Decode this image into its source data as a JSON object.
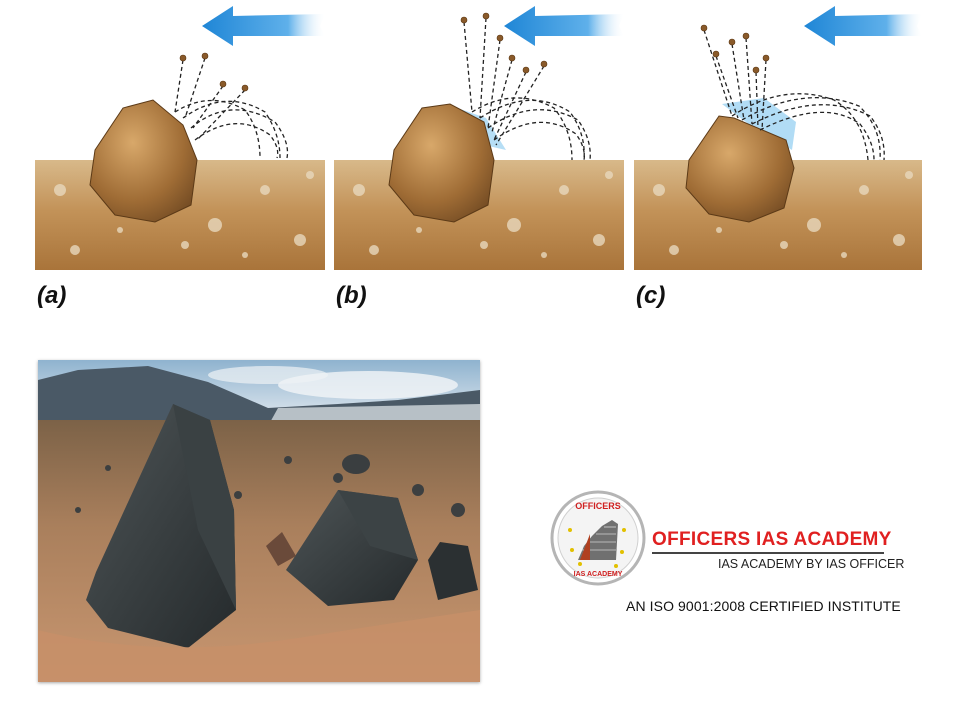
{
  "panels": [
    {
      "label": "(a)"
    },
    {
      "label": "(b)"
    },
    {
      "label": "(c)"
    }
  ],
  "colors": {
    "wind_arrow": "#2f93dc",
    "soil": "#b98a4e",
    "rock": "#9a6a35",
    "abrasion_zone": "#9dd3f2",
    "brand_red": "#e02020"
  },
  "photo": {
    "icon": "ventifact-rock-photo"
  },
  "logo": {
    "emblem_top_text": "OFFICERS",
    "emblem_bottom_text": "IAS ACADEMY",
    "name": "OFFICERS IAS ACADEMY",
    "tagline": "IAS ACADEMY BY IAS OFFICER",
    "certification": "AN ISO 9001:2008 CERTIFIED INSTITUTE"
  }
}
